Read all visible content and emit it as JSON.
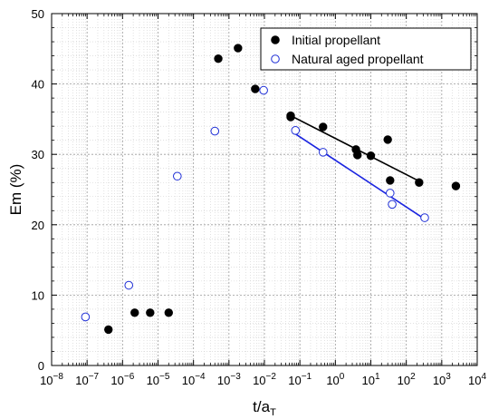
{
  "chart_data": {
    "type": "scatter",
    "xlabel_main": "t/a",
    "xlabel_sub": "T",
    "ylabel": "Em (%)",
    "xscale": "log",
    "xlim": [
      1e-08,
      10000
    ],
    "ylim": [
      0,
      50
    ],
    "x_tick_exponents": [
      -8,
      -7,
      -6,
      -5,
      -4,
      -3,
      -2,
      -1,
      0,
      1,
      2,
      3,
      4
    ],
    "y_ticks": [
      0,
      10,
      20,
      30,
      40,
      50
    ],
    "grid": true,
    "legend_position": "top-right",
    "series": [
      {
        "name": "Initial propellant",
        "marker": "filled-circle",
        "color": "#000000",
        "points": [
          {
            "x": 4e-07,
            "y": 5.1
          },
          {
            "x": 2.2e-06,
            "y": 7.5
          },
          {
            "x": 6e-06,
            "y": 7.5
          },
          {
            "x": 2e-05,
            "y": 7.5
          },
          {
            "x": 0.0005,
            "y": 43.6
          },
          {
            "x": 0.0018,
            "y": 45.1
          },
          {
            "x": 0.0055,
            "y": 39.3
          },
          {
            "x": 0.055,
            "y": 35.5
          },
          {
            "x": 0.055,
            "y": 35.3
          },
          {
            "x": 0.45,
            "y": 33.9
          },
          {
            "x": 3.8,
            "y": 30.7
          },
          {
            "x": 4.2,
            "y": 29.9
          },
          {
            "x": 10,
            "y": 29.8
          },
          {
            "x": 30,
            "y": 32.1
          },
          {
            "x": 35,
            "y": 26.3
          },
          {
            "x": 230,
            "y": 26.0
          },
          {
            "x": 2500,
            "y": 25.5
          }
        ],
        "fit_line": {
          "x": [
            0.055,
            230
          ],
          "y": [
            35.5,
            26.2
          ],
          "color": "#000000"
        }
      },
      {
        "name": "Natural aged propellant",
        "marker": "open-circle",
        "color": "#1f2fd6",
        "points": [
          {
            "x": 9e-08,
            "y": 6.9
          },
          {
            "x": 1.5e-06,
            "y": 11.4
          },
          {
            "x": 3.5e-05,
            "y": 26.9
          },
          {
            "x": 0.0004,
            "y": 33.3
          },
          {
            "x": 0.0095,
            "y": 39.1
          },
          {
            "x": 0.075,
            "y": 33.4
          },
          {
            "x": 0.45,
            "y": 30.3
          },
          {
            "x": 35,
            "y": 24.5
          },
          {
            "x": 40,
            "y": 22.9
          },
          {
            "x": 330,
            "y": 21.0
          }
        ],
        "fit_line": {
          "x": [
            0.075,
            330
          ],
          "y": [
            32.9,
            20.8
          ],
          "color": "#1a24e0"
        }
      }
    ]
  }
}
